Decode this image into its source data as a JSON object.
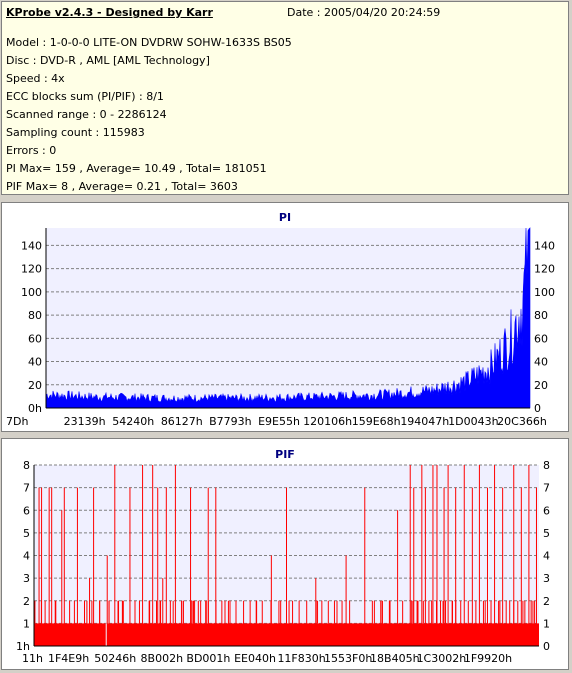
{
  "header": {
    "title": "KProbe v2.4.3 - Designed by Karr",
    "date": "Date : 2005/04/20 20:24:59"
  },
  "info_lines": [
    "Model : 1-0-0-0 LITE-ON DVDRW SOHW-1633S BS05",
    "Disc : DVD-R , AML [AML Technology]",
    "Speed : 4x",
    "ECC blocks sum (PI/PIF) : 8/1",
    "Scanned range : 0 - 2286124",
    "Sampling count : 115983",
    "Errors : 0",
    "PI Max= 159 , Average= 10.49 , Total= 181051",
    "PIF Max= 8 , Average= 0.21 , Total= 3603"
  ],
  "colors": {
    "pi": "#0000ff",
    "pif": "#ff0000",
    "title": "#000080",
    "plot_bg": "#f0f0ff",
    "grid": "#808080"
  },
  "chart_data": [
    {
      "type": "area",
      "title": "PI",
      "xlabel": "",
      "ylabel": "",
      "ylim": [
        0,
        155
      ],
      "yticks": [
        0,
        20,
        40,
        60,
        80,
        100,
        120,
        140
      ],
      "ytick_labels": [
        "0h",
        "20",
        "40",
        "60",
        "80",
        "100",
        "120",
        "140"
      ],
      "ytick_labels_right": [
        "0",
        "20",
        "40",
        "60",
        "80",
        "100",
        "120",
        "140"
      ],
      "xtick_labels": [
        "7Dh",
        "23139h",
        "54240h",
        "86127h",
        "B7793h",
        "E9E55h",
        "120106h",
        "159E68h",
        "194047h",
        "1D0043h",
        "20C366h"
      ],
      "grid": true,
      "profile": [
        {
          "x": 0.0,
          "y": 12
        },
        {
          "x": 0.1,
          "y": 10
        },
        {
          "x": 0.25,
          "y": 9
        },
        {
          "x": 0.4,
          "y": 9
        },
        {
          "x": 0.55,
          "y": 10
        },
        {
          "x": 0.7,
          "y": 12
        },
        {
          "x": 0.8,
          "y": 16
        },
        {
          "x": 0.87,
          "y": 24
        },
        {
          "x": 0.92,
          "y": 38
        },
        {
          "x": 0.96,
          "y": 62
        },
        {
          "x": 0.985,
          "y": 95
        },
        {
          "x": 1.0,
          "y": 150
        }
      ],
      "max": 159
    },
    {
      "type": "bar",
      "title": "PIF",
      "xlabel": "",
      "ylabel": "",
      "ylim": [
        0,
        8
      ],
      "yticks": [
        0,
        1,
        2,
        3,
        4,
        5,
        6,
        7,
        8
      ],
      "ytick_labels": [
        "1h",
        "1",
        "2",
        "3",
        "4",
        "5",
        "6",
        "7",
        "8"
      ],
      "ytick_labels_right": [
        "0",
        "1",
        "2",
        "3",
        "4",
        "5",
        "6",
        "7",
        "8"
      ],
      "xtick_labels": [
        "11h",
        "1F4E9h",
        "50246h",
        "8B002h",
        "BD001h",
        "EE040h",
        "11F830h",
        "1553F0h",
        "18B405h",
        "1C3002h",
        "1F9920h"
      ],
      "grid": true,
      "base_level": 1,
      "spikes": [
        [
          0.01,
          7
        ],
        [
          0.015,
          7
        ],
        [
          0.022,
          2
        ],
        [
          0.03,
          7
        ],
        [
          0.035,
          7
        ],
        [
          0.042,
          2
        ],
        [
          0.055,
          6
        ],
        [
          0.06,
          7
        ],
        [
          0.08,
          2
        ],
        [
          0.086,
          7
        ],
        [
          0.1,
          2
        ],
        [
          0.11,
          3
        ],
        [
          0.118,
          7
        ],
        [
          0.13,
          2
        ],
        [
          0.145,
          4
        ],
        [
          0.16,
          8
        ],
        [
          0.175,
          2
        ],
        [
          0.19,
          7
        ],
        [
          0.2,
          2
        ],
        [
          0.215,
          8
        ],
        [
          0.228,
          2
        ],
        [
          0.235,
          8
        ],
        [
          0.245,
          7
        ],
        [
          0.255,
          3
        ],
        [
          0.262,
          7
        ],
        [
          0.27,
          2
        ],
        [
          0.28,
          8
        ],
        [
          0.292,
          2
        ],
        [
          0.31,
          7
        ],
        [
          0.318,
          2
        ],
        [
          0.33,
          2
        ],
        [
          0.345,
          7
        ],
        [
          0.36,
          7
        ],
        [
          0.372,
          2
        ],
        [
          0.385,
          2
        ],
        [
          0.4,
          2
        ],
        [
          0.415,
          2
        ],
        [
          0.428,
          2
        ],
        [
          0.44,
          2
        ],
        [
          0.452,
          2
        ],
        [
          0.47,
          4
        ],
        [
          0.485,
          2
        ],
        [
          0.5,
          7
        ],
        [
          0.512,
          2
        ],
        [
          0.525,
          2
        ],
        [
          0.54,
          2
        ],
        [
          0.558,
          3
        ],
        [
          0.57,
          2
        ],
        [
          0.6,
          2
        ],
        [
          0.61,
          2
        ],
        [
          0.618,
          4
        ],
        [
          0.625,
          2
        ],
        [
          0.655,
          7
        ],
        [
          0.67,
          2
        ],
        [
          0.69,
          2
        ],
        [
          0.705,
          2
        ],
        [
          0.72,
          6
        ],
        [
          0.73,
          2
        ],
        [
          0.745,
          8
        ],
        [
          0.752,
          7
        ],
        [
          0.76,
          2
        ],
        [
          0.768,
          8
        ],
        [
          0.775,
          7
        ],
        [
          0.782,
          2
        ],
        [
          0.79,
          8
        ],
        [
          0.798,
          8
        ],
        [
          0.805,
          2
        ],
        [
          0.812,
          7
        ],
        [
          0.82,
          8
        ],
        [
          0.828,
          2
        ],
        [
          0.835,
          7
        ],
        [
          0.845,
          2
        ],
        [
          0.852,
          8
        ],
        [
          0.86,
          2
        ],
        [
          0.868,
          7
        ],
        [
          0.875,
          2
        ],
        [
          0.882,
          8
        ],
        [
          0.89,
          2
        ],
        [
          0.898,
          7
        ],
        [
          0.905,
          2
        ],
        [
          0.912,
          8
        ],
        [
          0.92,
          2
        ],
        [
          0.928,
          7
        ],
        [
          0.935,
          2
        ],
        [
          0.942,
          2
        ],
        [
          0.95,
          8
        ],
        [
          0.958,
          2
        ],
        [
          0.965,
          7
        ],
        [
          0.972,
          2
        ],
        [
          0.98,
          8
        ],
        [
          0.988,
          2
        ],
        [
          0.995,
          7
        ]
      ]
    }
  ]
}
